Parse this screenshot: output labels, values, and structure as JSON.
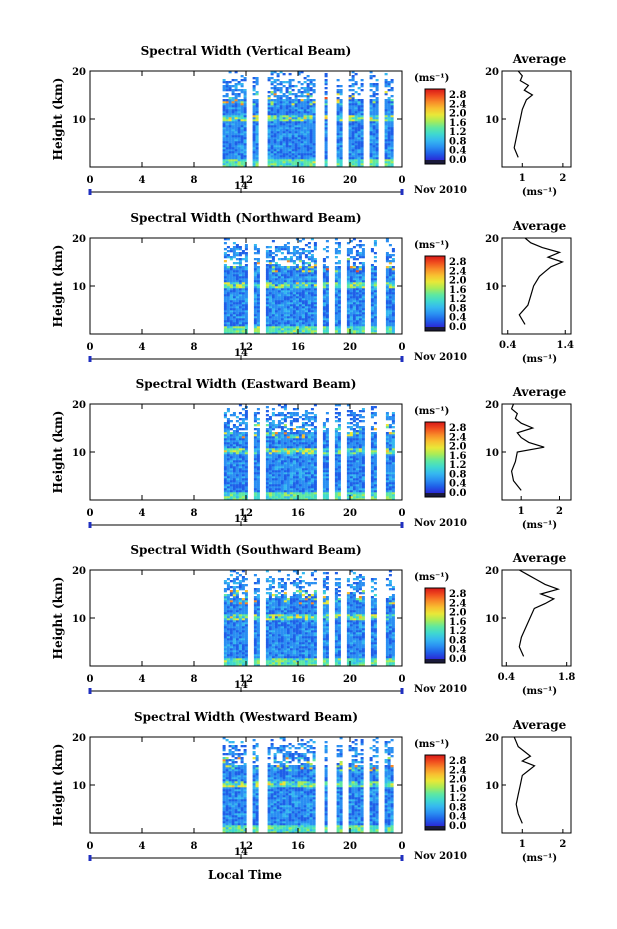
{
  "colorbar": {
    "unit_label": "(ms⁻¹)",
    "ticks": [
      "2.8",
      "2.4",
      "2.0",
      "1.6",
      "1.2",
      "0.8",
      "0.4",
      "0.0"
    ],
    "colors": [
      "#2b2bd6",
      "#1f5fe8",
      "#2a8ff2",
      "#35b8f0",
      "#3fd8d0",
      "#5fe8a0",
      "#a8ec58",
      "#e8e838",
      "#f8c030",
      "#f88a28",
      "#f04c1e",
      "#d81818"
    ]
  },
  "shared": {
    "x_ticks": [
      "0",
      "4",
      "8",
      "12",
      "16",
      "20",
      "0"
    ],
    "date_mark": "14",
    "date_label": "Nov 2010",
    "ylabel": "Height (km)",
    "xlabel": "Local Time",
    "avg_title": "Average",
    "avg_xlabel": "(ms⁻¹)"
  },
  "chart_data": [
    {
      "type": "heatmap",
      "title": "Spectral Width (Vertical Beam)",
      "xlabel": "",
      "ylabel": "Height (km)",
      "xlim": [
        0,
        24
      ],
      "ylim": [
        0,
        20
      ],
      "y_ticks": [
        "20",
        "10"
      ],
      "data_start_hour": 10.2,
      "avg_x_ticks": [
        "1",
        "2"
      ],
      "avg_xlim": [
        0.5,
        2.2
      ],
      "avg_profile": {
        "height": [
          2,
          4,
          6,
          8,
          10,
          12,
          14,
          15,
          16,
          17,
          18,
          19,
          20
        ],
        "width": [
          0.9,
          0.8,
          0.85,
          0.9,
          0.95,
          1.0,
          1.1,
          1.25,
          1.05,
          1.15,
          0.95,
          1.0,
          0.9
        ]
      }
    },
    {
      "type": "heatmap",
      "title": "Spectral Width (Northward Beam)",
      "xlabel": "",
      "ylabel": "Height (km)",
      "xlim": [
        0,
        24
      ],
      "ylim": [
        0,
        20
      ],
      "y_ticks": [
        "20",
        "10"
      ],
      "data_start_hour": 10.3,
      "avg_x_ticks": [
        "0.4",
        "1.4"
      ],
      "avg_xlim": [
        0.3,
        1.5
      ],
      "avg_profile": {
        "height": [
          2,
          4,
          6,
          8,
          10,
          12,
          13,
          14,
          15,
          16,
          17,
          18,
          19,
          20
        ],
        "width": [
          0.7,
          0.6,
          0.75,
          0.8,
          0.85,
          0.95,
          1.05,
          1.15,
          1.35,
          1.1,
          1.3,
          1.0,
          0.8,
          0.7
        ]
      }
    },
    {
      "type": "heatmap",
      "title": "Spectral Width (Eastward Beam)",
      "xlabel": "",
      "ylabel": "Height (km)",
      "xlim": [
        0,
        24
      ],
      "ylim": [
        0,
        20
      ],
      "y_ticks": [
        "20",
        "10"
      ],
      "data_start_hour": 10.3,
      "avg_x_ticks": [
        "1",
        "2"
      ],
      "avg_xlim": [
        0.5,
        2.3
      ],
      "avg_profile": {
        "height": [
          2,
          4,
          6,
          8,
          10,
          11,
          12,
          13,
          14,
          15,
          16,
          17,
          18,
          19,
          20
        ],
        "width": [
          1.0,
          0.8,
          0.75,
          0.85,
          0.9,
          1.6,
          1.2,
          1.0,
          0.9,
          1.3,
          1.0,
          0.85,
          0.9,
          0.75,
          0.8
        ]
      }
    },
    {
      "type": "heatmap",
      "title": "Spectral Width (Southward Beam)",
      "xlabel": "",
      "ylabel": "Height (km)",
      "xlim": [
        0,
        24
      ],
      "ylim": [
        0,
        20
      ],
      "y_ticks": [
        "20",
        "10"
      ],
      "data_start_hour": 10.3,
      "avg_x_ticks": [
        "0.4",
        "1.8"
      ],
      "avg_xlim": [
        0.3,
        1.9
      ],
      "avg_profile": {
        "height": [
          2,
          4,
          6,
          8,
          10,
          12,
          13,
          14,
          15,
          16,
          17,
          18,
          19,
          20
        ],
        "width": [
          0.8,
          0.7,
          0.75,
          0.85,
          0.95,
          1.05,
          1.3,
          1.5,
          1.2,
          1.6,
          1.3,
          1.1,
          0.9,
          0.7
        ]
      }
    },
    {
      "type": "heatmap",
      "title": "Spectral Width (Westward Beam)",
      "xlabel": "",
      "ylabel": "Height (km)",
      "xlim": [
        0,
        24
      ],
      "ylim": [
        0,
        20
      ],
      "y_ticks": [
        "20",
        "10"
      ],
      "data_start_hour": 10.2,
      "avg_x_ticks": [
        "1",
        "2"
      ],
      "avg_xlim": [
        0.5,
        2.2
      ],
      "avg_profile": {
        "height": [
          2,
          4,
          6,
          8,
          10,
          12,
          13,
          14,
          15,
          16,
          17,
          18,
          19,
          20
        ],
        "width": [
          1.0,
          0.9,
          0.85,
          0.9,
          0.95,
          1.0,
          1.15,
          1.3,
          1.0,
          1.2,
          1.05,
          0.9,
          0.85,
          0.8
        ]
      }
    }
  ]
}
